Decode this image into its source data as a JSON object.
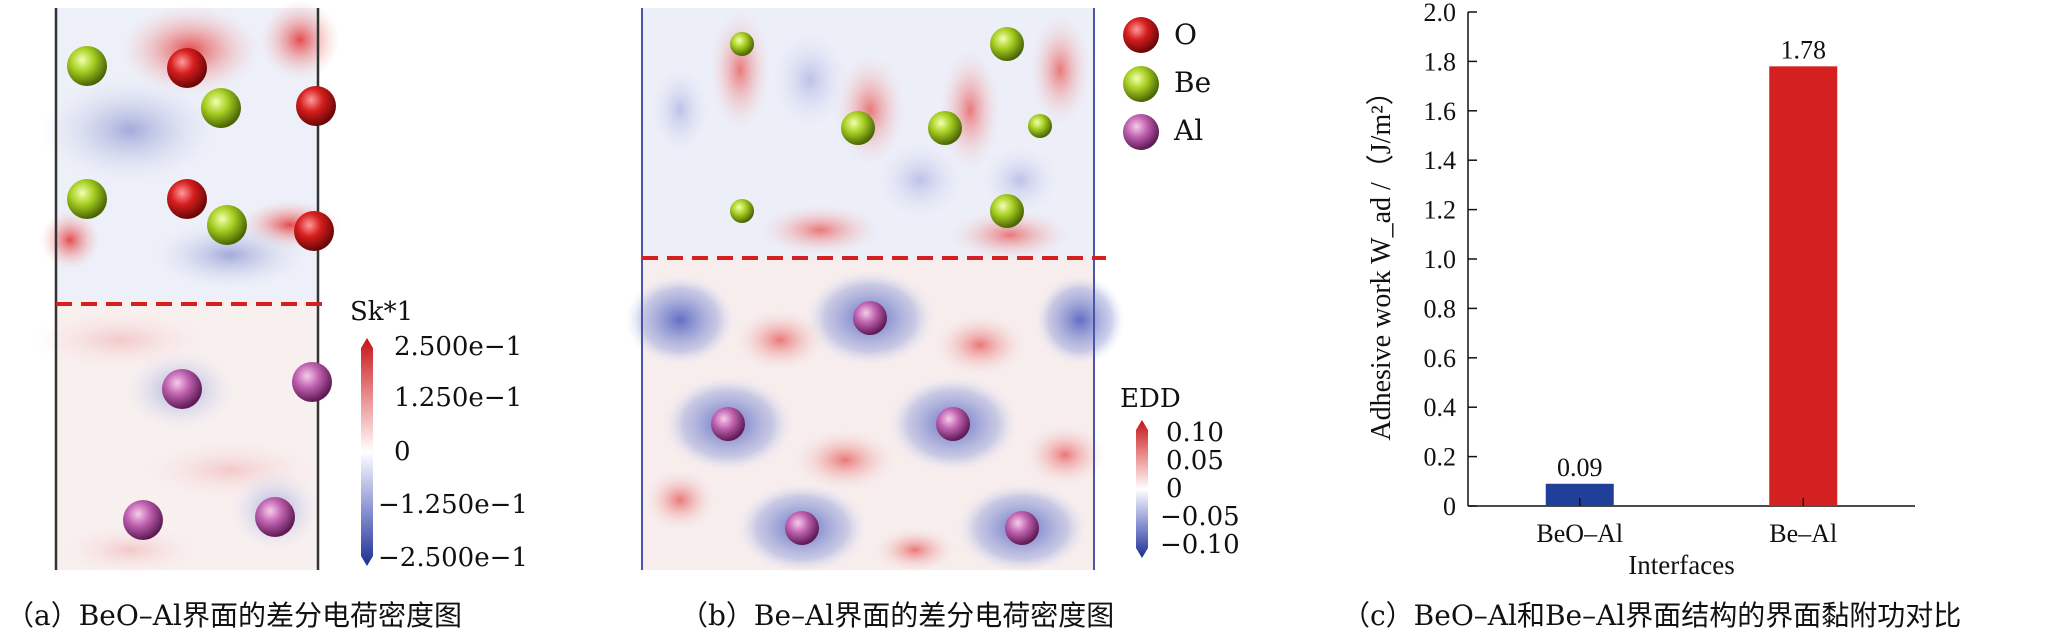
{
  "panel_a": {
    "colorbar": {
      "title": "Sk*1",
      "ticks": [
        "2.500e−1",
        "1.250e−1",
        "0",
        "−1.250e−1",
        "−2.500e−1"
      ]
    },
    "caption": "（a）BeO–Al界面的差分电荷密度图"
  },
  "panel_b": {
    "colorbar": {
      "title": "EDD",
      "ticks": [
        "0.10",
        "0.05",
        "0",
        "−0.05",
        "−0.10"
      ]
    },
    "legend": [
      {
        "label": "O",
        "color": "#d42020"
      },
      {
        "label": "Be",
        "color": "#9acd32"
      },
      {
        "label": "Al",
        "color": "#c060b0"
      }
    ],
    "caption": "（b）Be–Al界面的差分电荷密度图"
  },
  "chart_data": {
    "type": "bar",
    "categories": [
      "BeO–Al",
      "Be–Al"
    ],
    "values": [
      0.09,
      1.78
    ],
    "value_labels": [
      "0.09",
      "1.78"
    ],
    "colors": [
      "#1f3f99",
      "#d42020"
    ],
    "xlabel": "Interfaces",
    "ylabel": "Adhesive work W_ad /（J/m²）",
    "ylim": [
      0,
      2.0
    ],
    "yticks": [
      "0",
      "0.2",
      "0.4",
      "0.6",
      "0.8",
      "1.0",
      "1.2",
      "1.4",
      "1.6",
      "1.8",
      "2.0"
    ],
    "caption": "（c）BeO–Al和Be–Al界面结构的界面黏附功对比"
  }
}
